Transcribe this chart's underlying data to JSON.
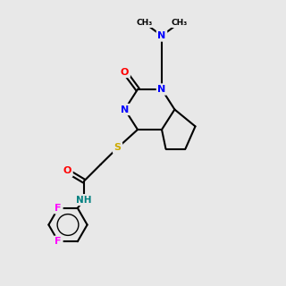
{
  "background_color": "#e8e8e8",
  "bond_color": "#000000",
  "atom_colors": {
    "N": "#0000ff",
    "O": "#ff0000",
    "S": "#ccaa00",
    "F": "#ff00ff",
    "H": "#008080",
    "C": "#000000"
  }
}
